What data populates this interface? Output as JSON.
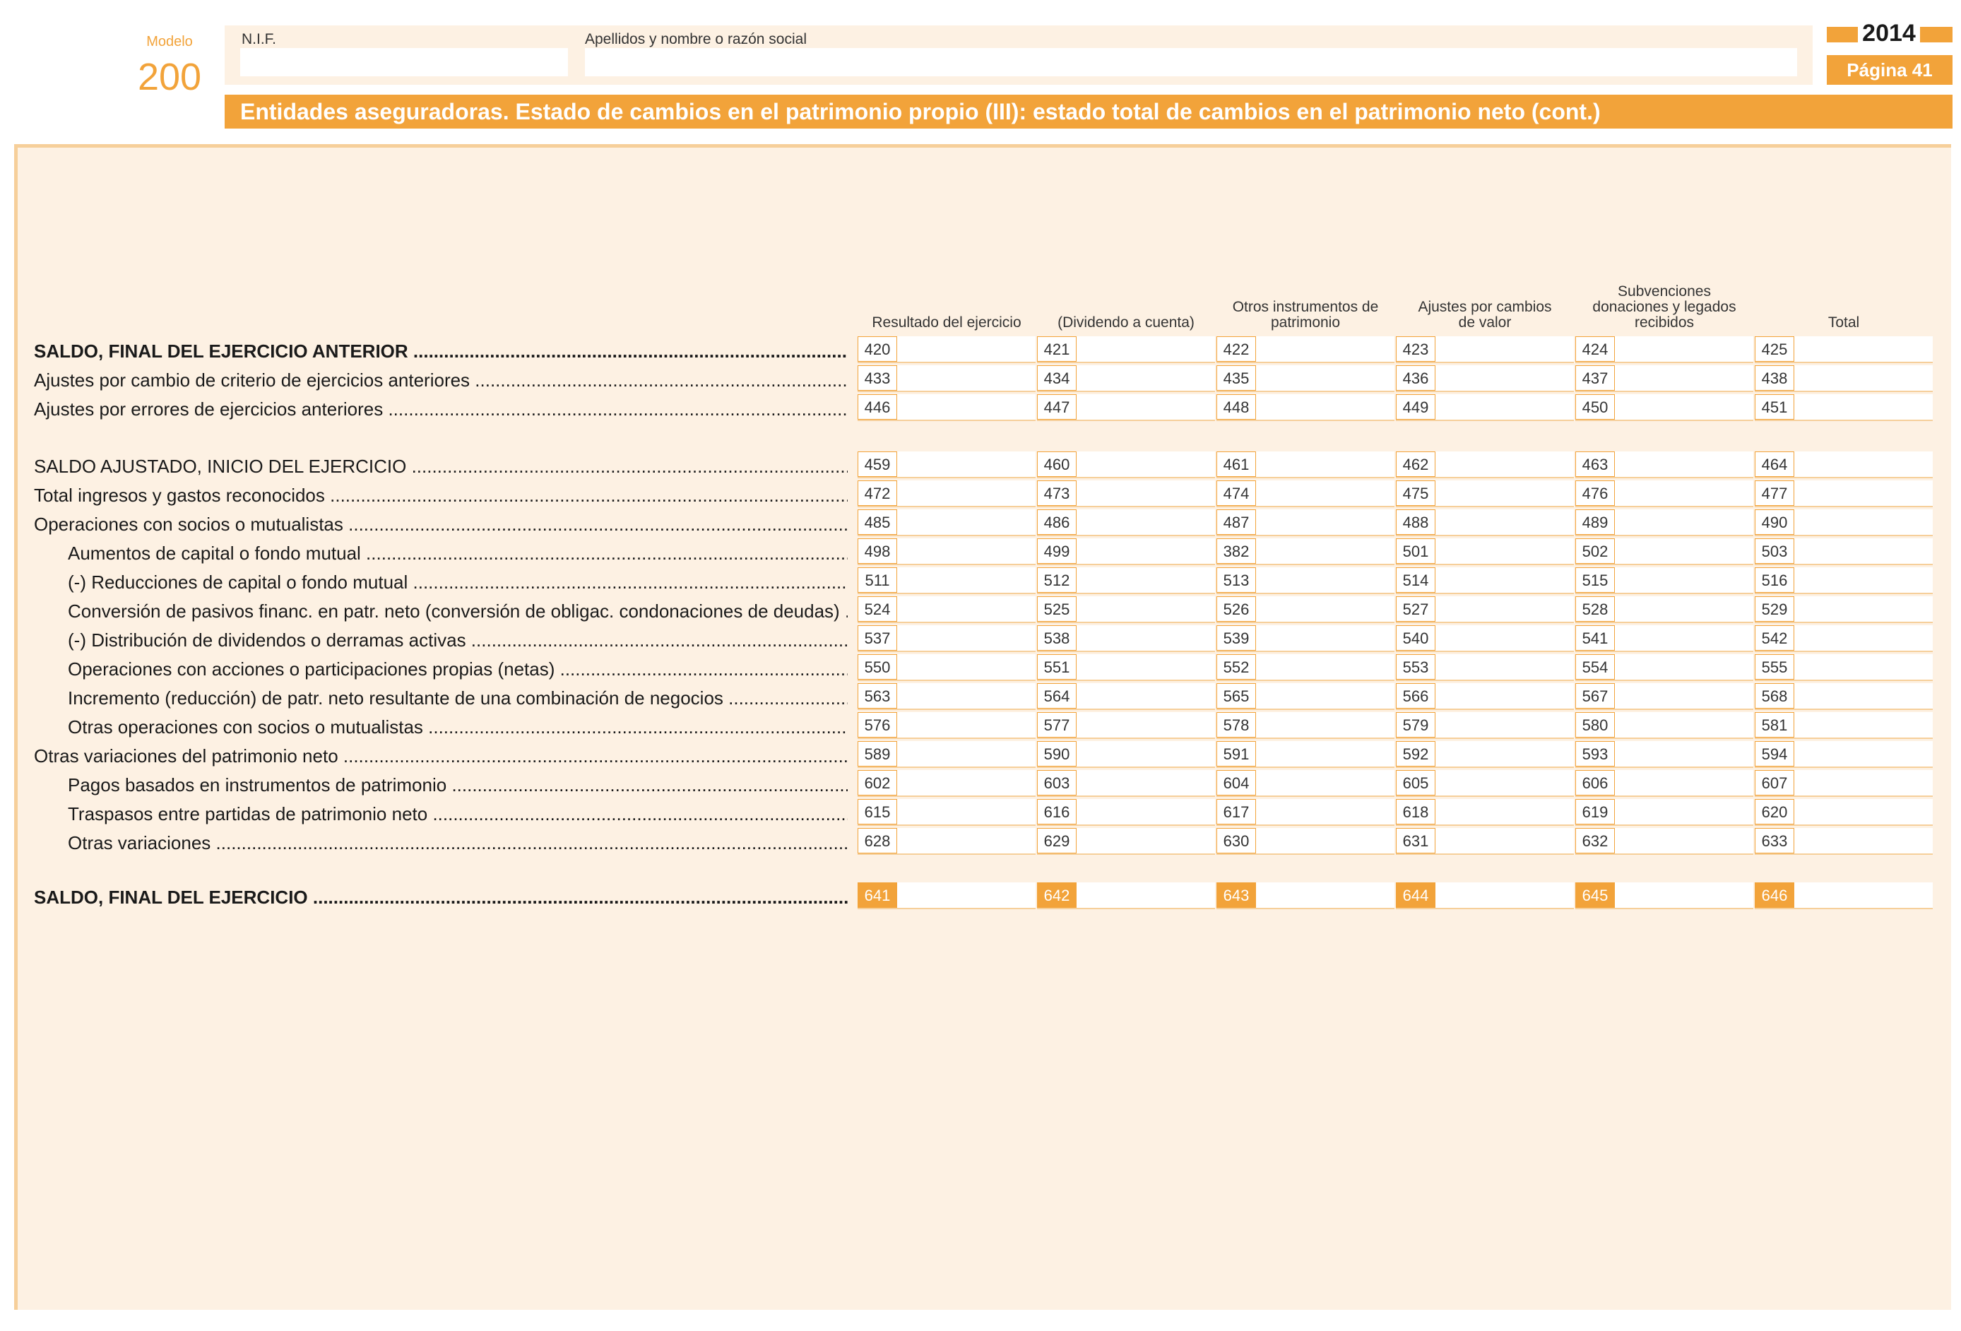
{
  "header": {
    "modelo_label": "Modelo",
    "modelo_number": "200",
    "nif_label": "N.I.F.",
    "nif_value": "",
    "name_label": "Apellidos y nombre o razón social",
    "name_value": "",
    "year": "2014",
    "page": "Página 41",
    "title": "Entidades aseguradoras. Estado de cambios en el patrimonio propio (III): estado total de cambios en el patrimonio neto (cont.)"
  },
  "columns": [
    "Resultado del ejercicio",
    "(Dividendo a cuenta)",
    "Otros instrumentos de patrimonio",
    "Ajustes por cambios de valor",
    "Subvenciones donaciones y legados recibidos",
    "Total"
  ],
  "rows": [
    {
      "label": "SALDO, FINAL DEL EJERCICIO ANTERIOR",
      "bold": true,
      "indent": false,
      "codes": [
        "420",
        "421",
        "422",
        "423",
        "424",
        "425"
      ]
    },
    {
      "label": "Ajustes por cambio de criterio de ejercicios anteriores",
      "bold": false,
      "indent": false,
      "codes": [
        "433",
        "434",
        "435",
        "436",
        "437",
        "438"
      ]
    },
    {
      "label": "Ajustes por errores de ejercicios anteriores",
      "bold": false,
      "indent": false,
      "codes": [
        "446",
        "447",
        "448",
        "449",
        "450",
        "451"
      ]
    },
    {
      "label": "SALDO AJUSTADO, INICIO DEL EJERCICIO",
      "bold": false,
      "indent": false,
      "codes": [
        "459",
        "460",
        "461",
        "462",
        "463",
        "464"
      ]
    },
    {
      "label": "Total ingresos y gastos reconocidos",
      "bold": false,
      "indent": false,
      "codes": [
        "472",
        "473",
        "474",
        "475",
        "476",
        "477"
      ]
    },
    {
      "label": "Operaciones con socios o mutualistas",
      "bold": false,
      "indent": false,
      "codes": [
        "485",
        "486",
        "487",
        "488",
        "489",
        "490"
      ]
    },
    {
      "label": "Aumentos de capital o fondo mutual",
      "bold": false,
      "indent": true,
      "codes": [
        "498",
        "499",
        "382",
        "501",
        "502",
        "503"
      ]
    },
    {
      "label": "(-) Reducciones de capital o fondo mutual",
      "bold": false,
      "indent": true,
      "codes": [
        "511",
        "512",
        "513",
        "514",
        "515",
        "516"
      ]
    },
    {
      "label": "Conversión de pasivos financ. en patr. neto (conversión de obligac. condonaciones de deudas)",
      "bold": false,
      "indent": true,
      "codes": [
        "524",
        "525",
        "526",
        "527",
        "528",
        "529"
      ]
    },
    {
      "label": "(-) Distribución de dividendos o derramas activas",
      "bold": false,
      "indent": true,
      "codes": [
        "537",
        "538",
        "539",
        "540",
        "541",
        "542"
      ]
    },
    {
      "label": "Operaciones con acciones o participaciones propias (netas)",
      "bold": false,
      "indent": true,
      "codes": [
        "550",
        "551",
        "552",
        "553",
        "554",
        "555"
      ]
    },
    {
      "label": "Incremento (reducción) de patr. neto resultante de una combinación de negocios",
      "bold": false,
      "indent": true,
      "codes": [
        "563",
        "564",
        "565",
        "566",
        "567",
        "568"
      ]
    },
    {
      "label": "Otras operaciones con socios o mutualistas",
      "bold": false,
      "indent": true,
      "codes": [
        "576",
        "577",
        "578",
        "579",
        "580",
        "581"
      ]
    },
    {
      "label": "Otras variaciones del patrimonio neto",
      "bold": false,
      "indent": false,
      "codes": [
        "589",
        "590",
        "591",
        "592",
        "593",
        "594"
      ]
    },
    {
      "label": "Pagos basados en instrumentos de patrimonio",
      "bold": false,
      "indent": true,
      "codes": [
        "602",
        "603",
        "604",
        "605",
        "606",
        "607"
      ]
    },
    {
      "label": "Traspasos entre partidas de patrimonio neto",
      "bold": false,
      "indent": true,
      "codes": [
        "615",
        "616",
        "617",
        "618",
        "619",
        "620"
      ]
    },
    {
      "label": "Otras variaciones",
      "bold": false,
      "indent": true,
      "codes": [
        "628",
        "629",
        "630",
        "631",
        "632",
        "633"
      ]
    },
    {
      "label": "SALDO, FINAL DEL EJERCICIO",
      "bold": true,
      "indent": false,
      "highlight": true,
      "codes": [
        "641",
        "642",
        "643",
        "644",
        "645",
        "646"
      ]
    }
  ]
}
